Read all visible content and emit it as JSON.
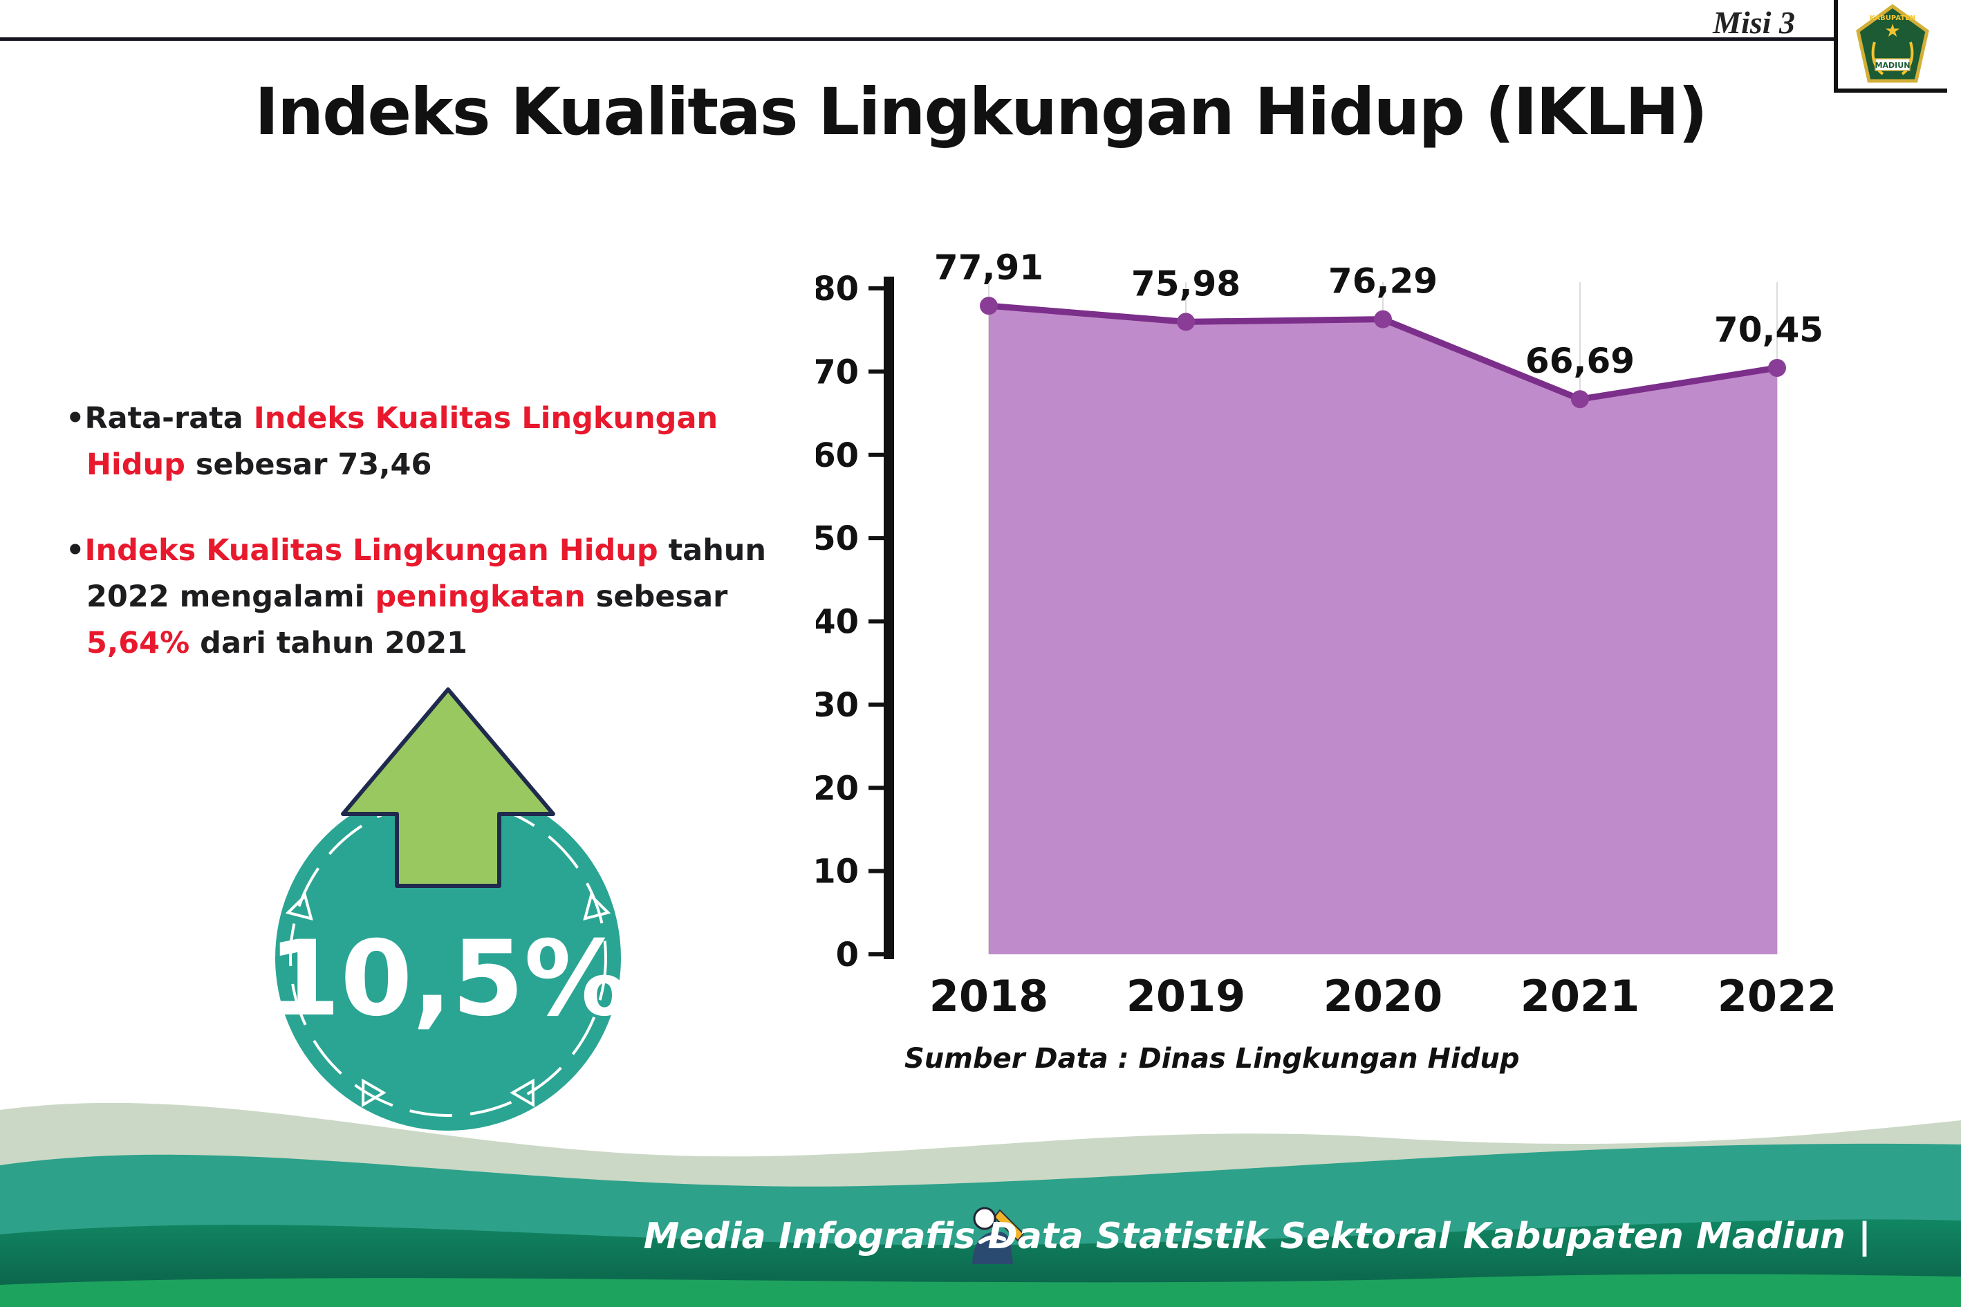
{
  "colors": {
    "accent_red": "#e8192d",
    "badge_teal": "#2aa593",
    "arrow_green": "#99c860",
    "arrow_outline": "#1f2a4e",
    "chart_line_purple": "#7b2e8a",
    "chart_fill_purple": "#c08bca",
    "chart_dot_purple": "#8a3d96",
    "footer_teal": "#2da189"
  },
  "header": {
    "misi_label": "Misi 3",
    "title": "Indeks Kualitas Lingkungan Hidup (IKLH)"
  },
  "logo": {
    "region_text": "KABUPATEN",
    "name_text": "MADIUN"
  },
  "bullets": {
    "marker": "•",
    "b1": {
      "parts": [
        {
          "t": "Rata-rata ",
          "c": "dark"
        },
        {
          "t": "Indeks Kualitas Lingkungan Hidup",
          "c": "red"
        },
        {
          "t": " sebesar 73,46",
          "c": "dark"
        }
      ]
    },
    "b2": {
      "parts": [
        {
          "t": "Indeks Kualitas Lingkungan Hidup",
          "c": "red"
        },
        {
          "t": " tahun 2022 mengalami ",
          "c": "dark"
        },
        {
          "t": "peningkatan",
          "c": "red"
        },
        {
          "t": " sebesar ",
          "c": "dark"
        },
        {
          "t": "5,64%",
          "c": "red"
        },
        {
          "t": " dari tahun 2021",
          "c": "dark"
        }
      ]
    }
  },
  "badge": {
    "value": "10,5%"
  },
  "chart_data": {
    "type": "area",
    "title": "Indeks Kualitas Lingkungan Hidup (IKLH)",
    "x": [
      "2018",
      "2019",
      "2020",
      "2021",
      "2022"
    ],
    "series": [
      {
        "name": "IKLH",
        "values": [
          77.91,
          75.98,
          76.29,
          66.69,
          70.45
        ]
      }
    ],
    "point_labels": [
      "77,91",
      "75,98",
      "76,29",
      "66,69",
      "70,45"
    ],
    "ylim": [
      0,
      80
    ],
    "ytick_step": 10,
    "grid": "vertical-light",
    "legend": "none",
    "source_note": "Sumber Data : Dinas Lingkungan Hidup"
  },
  "footer": {
    "credit": "Media Infografis Data Statistik Sektoral Kabupaten Madiun |"
  }
}
